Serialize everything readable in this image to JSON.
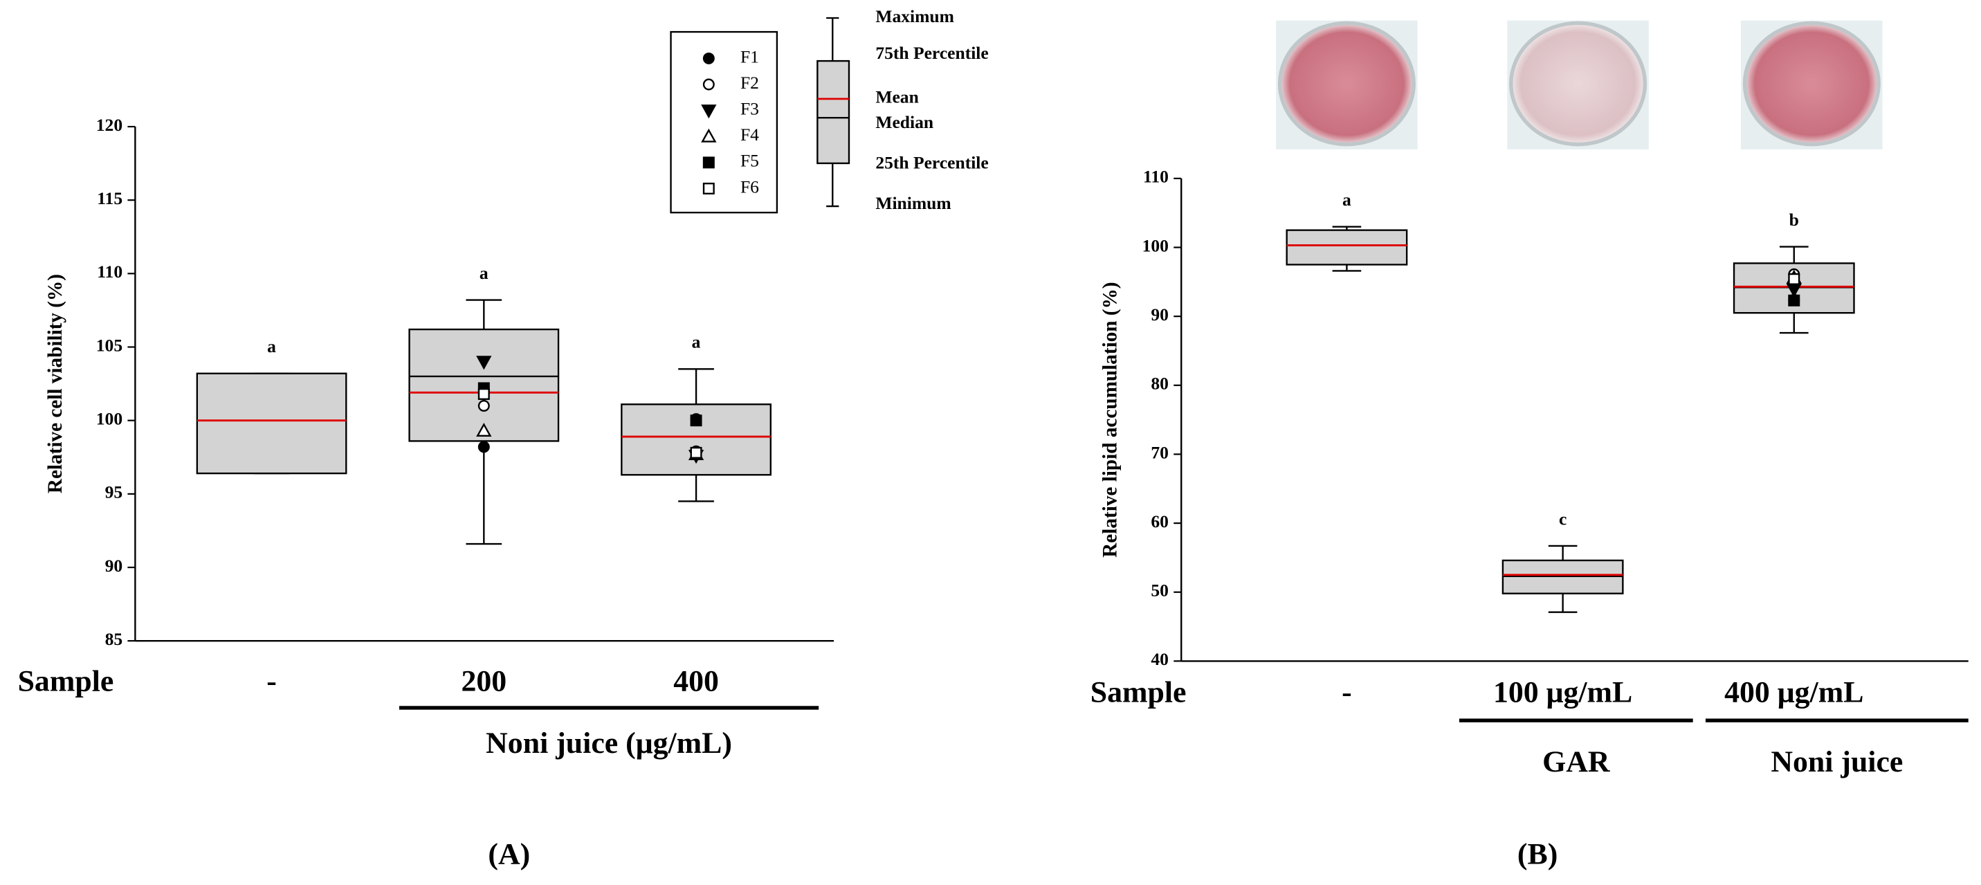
{
  "chart_data": [
    {
      "type": "box",
      "panel_label": "(A)",
      "ylabel": "Relative cell viability (%)",
      "x_label": "Sample",
      "categories": [
        "-",
        "200",
        "400"
      ],
      "groups": [
        "Noni juice (μg/mL)"
      ],
      "ylim": [
        85,
        120
      ],
      "yticks": [
        85,
        90,
        95,
        100,
        105,
        110,
        115,
        120
      ],
      "box_color": "#d3d3d3",
      "mean_color": "#e00000",
      "boxes": [
        {
          "min": 96.4,
          "q1": 96.4,
          "median": 100.0,
          "q3": 103.2,
          "max": 103.2,
          "mean": 100.0
        },
        {
          "min": 91.6,
          "q1": 98.6,
          "median": 103.0,
          "q3": 106.2,
          "max": 108.2,
          "mean": 101.9
        },
        {
          "min": 94.5,
          "q1": 96.3,
          "median": 98.9,
          "q3": 101.1,
          "max": 103.5,
          "mean": 98.9
        }
      ],
      "letters": [
        "a",
        "a",
        "a"
      ],
      "series": [
        {
          "name": "F1",
          "marker": "circle",
          "color": "#000000",
          "values": [
            null,
            98.2,
            100.1
          ]
        },
        {
          "name": "F2",
          "marker": "circle-open",
          "color": "#000000",
          "values": [
            null,
            101.0,
            97.9
          ]
        },
        {
          "name": "F3",
          "marker": "triangle-down",
          "color": "#000000",
          "values": [
            null,
            104.0,
            97.6
          ]
        },
        {
          "name": "F4",
          "marker": "triangle-open",
          "color": "#000000",
          "values": [
            null,
            99.3,
            97.7
          ]
        },
        {
          "name": "F5",
          "marker": "square",
          "color": "#000000",
          "values": [
            null,
            102.2,
            100.0
          ]
        },
        {
          "name": "F6",
          "marker": "square-open",
          "color": "#000000",
          "values": [
            null,
            101.8,
            97.8
          ]
        }
      ],
      "legend": true,
      "box_legend": {
        "max": "Maximum",
        "q3": "75th Percentile",
        "mean": "Mean",
        "median": "Median",
        "q1": "25th Percentile",
        "min": "Minimum"
      }
    },
    {
      "type": "box",
      "panel_label": "(B)",
      "ylabel": "Relative lipid accumulation (%)",
      "x_label": "Sample",
      "categories": [
        "-",
        "100  μg/mL",
        "400  μg/mL"
      ],
      "groups": [
        "GAR",
        "Noni juice"
      ],
      "ylim": [
        40,
        110
      ],
      "yticks": [
        40,
        50,
        60,
        70,
        80,
        90,
        100,
        110
      ],
      "box_color": "#d3d3d3",
      "mean_color": "#e00000",
      "boxes": [
        {
          "min": 96.6,
          "q1": 97.5,
          "median": 100.3,
          "q3": 102.5,
          "max": 103.0,
          "mean": 100.3
        },
        {
          "min": 47.1,
          "q1": 49.8,
          "median": 52.3,
          "q3": 54.6,
          "max": 56.7,
          "mean": 52.5
        },
        {
          "min": 87.6,
          "q1": 90.5,
          "median": 94.2,
          "q3": 97.7,
          "max": 100.1,
          "mean": 94.3
        }
      ],
      "letters": [
        "a",
        "c",
        "b"
      ],
      "series": [
        {
          "marker": "circle",
          "color": "#000000",
          "values": [
            null,
            null,
            92.4
          ]
        },
        {
          "marker": "circle-open",
          "color": "#000000",
          "values": [
            null,
            null,
            96.1
          ]
        },
        {
          "marker": "triangle-down",
          "color": "#000000",
          "values": [
            null,
            null,
            93.9
          ]
        },
        {
          "marker": "triangle-open",
          "color": "#000000",
          "values": [
            null,
            null,
            95.6
          ]
        },
        {
          "marker": "square",
          "color": "#000000",
          "values": [
            null,
            null,
            92.3
          ]
        },
        {
          "marker": "square-open",
          "color": "#000000",
          "values": [
            null,
            null,
            95.4
          ]
        }
      ]
    }
  ]
}
